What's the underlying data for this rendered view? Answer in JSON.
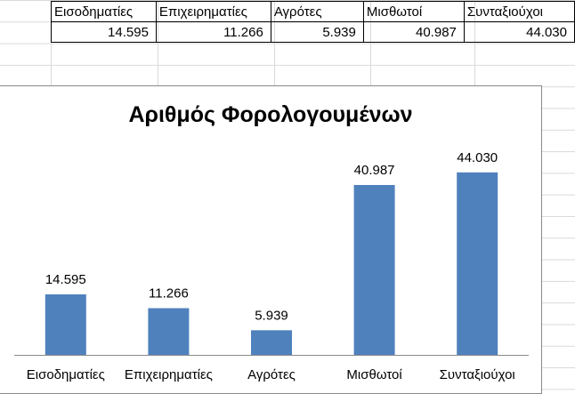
{
  "sheet": {
    "headers": [
      "Εισοδηματίες",
      "Επιχειρηματίες",
      "Αγρότες",
      "Μισθωτοί",
      "Συνταξιούχοι"
    ],
    "values": [
      "14.595",
      "11.266",
      "5.939",
      "40.987",
      "44.030"
    ]
  },
  "chart_data": {
    "type": "bar",
    "title": "Αριθμός Φορολογουμένων",
    "categories": [
      "Εισοδηματίες",
      "Επιχειρηματίες",
      "Αγρότες",
      "Μισθωτοί",
      "Συνταξιούχοι"
    ],
    "values": [
      14595,
      11266,
      5939,
      40987,
      44030
    ],
    "data_labels": [
      "14.595",
      "11.266",
      "5.939",
      "40.987",
      "44.030"
    ],
    "ylim": [
      0,
      50000
    ],
    "grid": false,
    "legend": "none",
    "bar_color": "#4f81bd"
  }
}
